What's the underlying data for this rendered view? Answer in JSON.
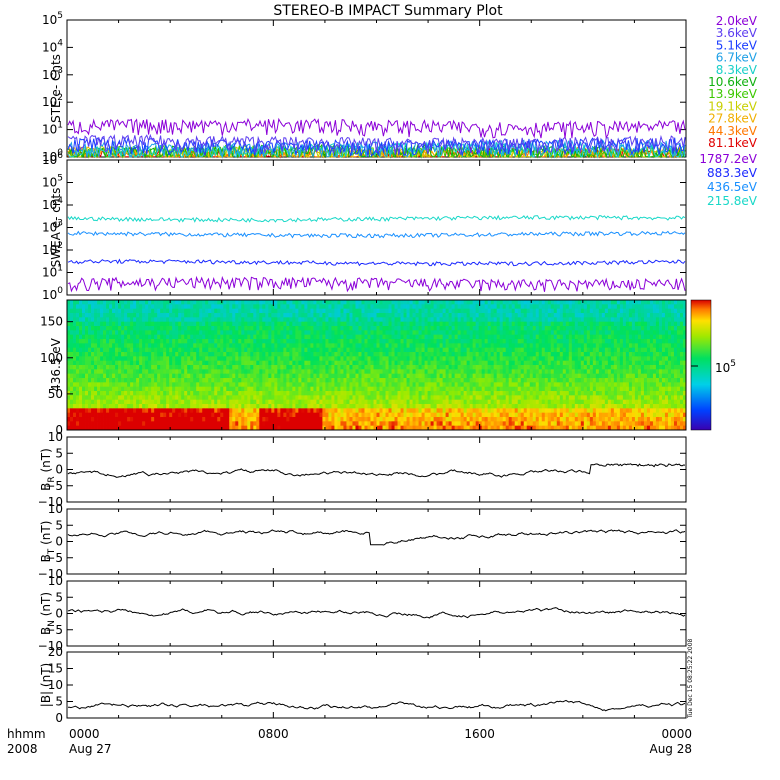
{
  "title": "STEREO-B IMPACT Summary Plot",
  "colors": {
    "ste": [
      "#8b00d8",
      "#5c3df0",
      "#1a3cff",
      "#1ea0e6",
      "#19d0c8",
      "#10b010",
      "#3cc800",
      "#c8d000",
      "#f0b000",
      "#ff7800",
      "#e00000"
    ],
    "swea": [
      "#8b00d8",
      "#1a28ff",
      "#1a90ff",
      "#19d8c8"
    ]
  },
  "chart_data": [
    {
      "id": "ste",
      "type": "line",
      "ylabel": "STE e- Cnts",
      "yscale": "log",
      "ylim": [
        1,
        100000
      ],
      "yticks": [
        {
          "base": "10",
          "exp": "0"
        },
        {
          "base": "10",
          "exp": "1"
        },
        {
          "base": "10",
          "exp": "2"
        },
        {
          "base": "10",
          "exp": "3"
        },
        {
          "base": "10",
          "exp": "4"
        },
        {
          "base": "10",
          "exp": "5"
        }
      ],
      "legend_placement": "right",
      "series": [
        {
          "name": "2.0keV",
          "level": 12
        },
        {
          "name": "3.6keV",
          "level": 3
        },
        {
          "name": "5.1keV",
          "level": 2.5
        },
        {
          "name": "6.7keV",
          "level": 2
        },
        {
          "name": "8.3keV",
          "level": 1.6
        },
        {
          "name": "10.6keV",
          "level": 1.4
        },
        {
          "name": "13.9keV",
          "level": 1.3
        },
        {
          "name": "19.1keV",
          "level": 1.2
        },
        {
          "name": "27.8keV",
          "level": 1.15
        },
        {
          "name": "44.3keV",
          "level": 1.1
        },
        {
          "name": "81.1keV",
          "level": 1.05
        }
      ]
    },
    {
      "id": "swea",
      "type": "line",
      "ylabel": "SWEA e- cnts",
      "yscale": "log",
      "ylim": [
        1,
        1000000
      ],
      "yticks": [
        {
          "base": "10",
          "exp": "0"
        },
        {
          "base": "10",
          "exp": "1"
        },
        {
          "base": "10",
          "exp": "2"
        },
        {
          "base": "10",
          "exp": "3"
        },
        {
          "base": "10",
          "exp": "4"
        },
        {
          "base": "10",
          "exp": "5"
        },
        {
          "base": "10",
          "exp": "6"
        }
      ],
      "legend_placement": "right",
      "series": [
        {
          "name": "1787.2eV",
          "level": 3
        },
        {
          "name": "883.3eV",
          "level": 28
        },
        {
          "name": "436.5eV",
          "level": 500
        },
        {
          "name": "215.8eV",
          "level": 2500
        }
      ]
    },
    {
      "id": "pad",
      "type": "heatmap",
      "ylabel": "436.5 eV",
      "ylim": [
        0,
        180
      ],
      "yticks": [
        "0",
        "50",
        "100",
        "150"
      ],
      "colorbar": {
        "label_base": "10",
        "label_exp": "5"
      }
    },
    {
      "id": "br",
      "type": "line",
      "ylabel_main": "B",
      "ylabel_sub": "R",
      "ylabel_unit": " (nT)",
      "ylim": [
        -10,
        10
      ],
      "yticks": [
        "10",
        "5",
        "0",
        "−5",
        "−10"
      ],
      "baseline": -1.2
    },
    {
      "id": "bt",
      "type": "line",
      "ylabel_main": "B",
      "ylabel_sub": "T",
      "ylabel_unit": " (nT)",
      "ylim": [
        -10,
        10
      ],
      "yticks": [
        "10",
        "5",
        "0",
        "−5",
        "−10"
      ],
      "baseline": 2.5
    },
    {
      "id": "bn",
      "type": "line",
      "ylabel_main": "B",
      "ylabel_sub": "N",
      "ylabel_unit": " (nT)",
      "ylim": [
        -10,
        10
      ],
      "yticks": [
        "10",
        "5",
        "0",
        "−5",
        "−10"
      ],
      "baseline": 0.5
    },
    {
      "id": "bmag",
      "type": "line",
      "ylabel_main": "|B| (nT)",
      "ylim": [
        0,
        20
      ],
      "yticks": [
        "20",
        "15",
        "10",
        "5",
        "0"
      ],
      "baseline": 3.5
    }
  ],
  "xaxis": {
    "ticks": [
      {
        "label": "0000",
        "sub": "Aug 27"
      },
      {
        "label": "0800",
        "sub": ""
      },
      {
        "label": "1600",
        "sub": ""
      },
      {
        "label": "0000",
        "sub": "Aug 28"
      }
    ],
    "corner_top": "hhmm",
    "corner_bottom": "2008"
  },
  "timestamp": "Tue Dec 15 08:25:22 2008"
}
